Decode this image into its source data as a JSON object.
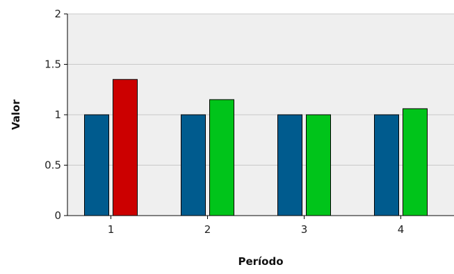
{
  "chart_data": {
    "type": "bar",
    "title": "",
    "xlabel": "Período",
    "ylabel": "Valor",
    "categories": [
      "1",
      "2",
      "3",
      "4"
    ],
    "ylim": [
      0,
      2
    ],
    "yticks": [
      0,
      0.5,
      1,
      1.5,
      2
    ],
    "ytick_labels": [
      "0",
      "0.5",
      "1",
      "1.5",
      "2"
    ],
    "grid": true,
    "legend": "none",
    "series": [
      {
        "values": [
          1,
          1,
          1,
          1
        ],
        "color": "#005b8e"
      },
      {
        "values": [
          1.35,
          1.15,
          1.0,
          1.06
        ],
        "colors": [
          "#cc0000",
          "#00c41a",
          "#00c41a",
          "#00c41a"
        ]
      }
    ],
    "plot_background": "#efefef",
    "grid_color": "#c8c8c8"
  }
}
